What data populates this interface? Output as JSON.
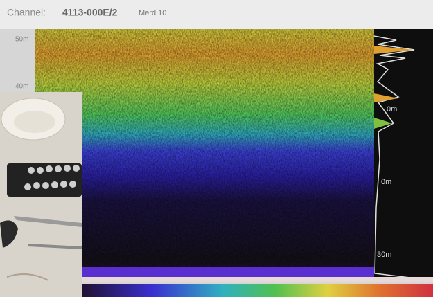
{
  "header": {
    "label": "Channel:",
    "channel": "4113-000E/2",
    "name": "Merd 10"
  },
  "depth_labels_left": [
    "50m",
    "40m"
  ],
  "depth_labels_right": [
    "0m",
    "0m",
    "30m"
  ]
}
